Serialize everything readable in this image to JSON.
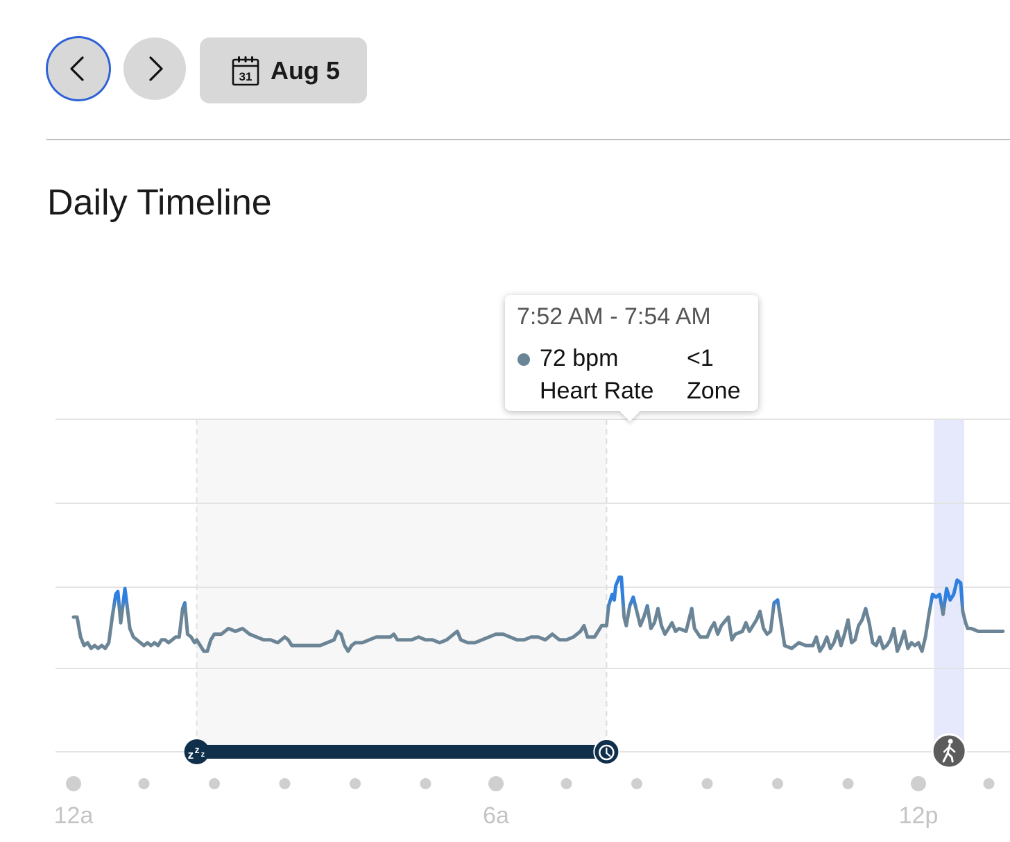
{
  "toolbar": {
    "prev_icon": "chevron-left-icon",
    "next_icon": "chevron-right-icon",
    "calendar_icon": "calendar-icon",
    "calendar_icon_day": "31",
    "date_label": "Aug 5"
  },
  "page_title": "Daily Timeline",
  "tooltip": {
    "time_range": "7:52 AM - 7:54 AM",
    "heart_rate_value": "72 bpm",
    "heart_rate_label": "Heart Rate",
    "zone_value": "<1",
    "zone_label": "Zone",
    "dot_color": "#6b8596"
  },
  "colors": {
    "line": "#6b8596",
    "line_high": "#2e7fe0",
    "sleep_bar": "#0f2f4a",
    "sleep_shade": "#f7f7f7",
    "activity_band": "#e6e9fb",
    "activity_badge": "#5c5c5c",
    "focus_ring": "#2f62d6"
  },
  "chart_data": {
    "type": "line",
    "x_unit": "hours since midnight",
    "xlim": [
      0,
      14
    ],
    "tick_labels": [
      {
        "hour": 0,
        "label": "12a"
      },
      {
        "hour": 6,
        "label": "6a"
      },
      {
        "hour": 12,
        "label": "12p"
      }
    ],
    "sleep": {
      "start_hour": 1.75,
      "end_hour": 7.57,
      "start_icon": "sleep-zzz-icon",
      "end_icon": "wake-clock-icon"
    },
    "activity": {
      "start_hour": 12.22,
      "end_hour": 12.65,
      "icon": "walking-icon"
    },
    "heart_rate_series": [
      [
        0.0,
        70
      ],
      [
        0.05,
        70
      ],
      [
        0.1,
        63
      ],
      [
        0.15,
        60
      ],
      [
        0.2,
        61
      ],
      [
        0.25,
        59
      ],
      [
        0.3,
        60
      ],
      [
        0.35,
        59
      ],
      [
        0.4,
        60
      ],
      [
        0.45,
        59
      ],
      [
        0.5,
        61
      ],
      [
        0.55,
        70
      ],
      [
        0.6,
        78
      ],
      [
        0.63,
        79
      ],
      [
        0.67,
        68
      ],
      [
        0.7,
        74
      ],
      [
        0.73,
        80
      ],
      [
        0.77,
        72
      ],
      [
        0.8,
        66
      ],
      [
        0.85,
        63
      ],
      [
        0.9,
        62
      ],
      [
        0.95,
        61
      ],
      [
        1.0,
        60
      ],
      [
        1.05,
        61
      ],
      [
        1.1,
        60
      ],
      [
        1.15,
        61
      ],
      [
        1.2,
        60
      ],
      [
        1.25,
        62
      ],
      [
        1.3,
        62
      ],
      [
        1.35,
        61
      ],
      [
        1.4,
        62
      ],
      [
        1.45,
        63
      ],
      [
        1.5,
        63
      ],
      [
        1.55,
        73
      ],
      [
        1.58,
        75
      ],
      [
        1.62,
        64
      ],
      [
        1.67,
        63
      ],
      [
        1.72,
        61
      ],
      [
        1.75,
        62
      ],
      [
        1.8,
        60
      ],
      [
        1.85,
        58
      ],
      [
        1.9,
        58
      ],
      [
        1.95,
        62
      ],
      [
        2.0,
        64
      ],
      [
        2.1,
        64
      ],
      [
        2.2,
        66
      ],
      [
        2.3,
        65
      ],
      [
        2.4,
        66
      ],
      [
        2.5,
        64
      ],
      [
        2.6,
        63
      ],
      [
        2.7,
        62
      ],
      [
        2.8,
        62
      ],
      [
        2.9,
        61
      ],
      [
        3.0,
        63
      ],
      [
        3.05,
        62
      ],
      [
        3.1,
        60
      ],
      [
        3.2,
        60
      ],
      [
        3.3,
        60
      ],
      [
        3.4,
        60
      ],
      [
        3.5,
        60
      ],
      [
        3.6,
        61
      ],
      [
        3.7,
        62
      ],
      [
        3.75,
        65
      ],
      [
        3.8,
        64
      ],
      [
        3.85,
        60
      ],
      [
        3.9,
        58
      ],
      [
        3.95,
        60
      ],
      [
        4.0,
        61
      ],
      [
        4.1,
        61
      ],
      [
        4.2,
        62
      ],
      [
        4.3,
        63
      ],
      [
        4.4,
        63
      ],
      [
        4.5,
        63
      ],
      [
        4.55,
        64
      ],
      [
        4.6,
        62
      ],
      [
        4.7,
        62
      ],
      [
        4.8,
        62
      ],
      [
        4.9,
        63
      ],
      [
        5.0,
        62
      ],
      [
        5.1,
        62
      ],
      [
        5.2,
        61
      ],
      [
        5.3,
        62
      ],
      [
        5.4,
        64
      ],
      [
        5.45,
        65
      ],
      [
        5.5,
        62
      ],
      [
        5.6,
        61
      ],
      [
        5.7,
        61
      ],
      [
        5.8,
        62
      ],
      [
        5.9,
        63
      ],
      [
        6.0,
        64
      ],
      [
        6.1,
        64
      ],
      [
        6.2,
        63
      ],
      [
        6.3,
        62
      ],
      [
        6.4,
        62
      ],
      [
        6.5,
        63
      ],
      [
        6.6,
        63
      ],
      [
        6.7,
        62
      ],
      [
        6.8,
        64
      ],
      [
        6.85,
        63
      ],
      [
        6.9,
        62
      ],
      [
        7.0,
        62
      ],
      [
        7.1,
        63
      ],
      [
        7.2,
        65
      ],
      [
        7.25,
        67
      ],
      [
        7.3,
        63
      ],
      [
        7.4,
        63
      ],
      [
        7.45,
        65
      ],
      [
        7.5,
        67
      ],
      [
        7.57,
        67
      ],
      [
        7.6,
        74
      ],
      [
        7.65,
        78
      ],
      [
        7.68,
        76
      ],
      [
        7.7,
        81
      ],
      [
        7.75,
        84
      ],
      [
        7.78,
        84
      ],
      [
        7.82,
        70
      ],
      [
        7.85,
        67
      ],
      [
        7.9,
        74
      ],
      [
        7.95,
        77
      ],
      [
        8.0,
        72
      ],
      [
        8.05,
        67
      ],
      [
        8.1,
        70
      ],
      [
        8.15,
        74
      ],
      [
        8.2,
        66
      ],
      [
        8.25,
        68
      ],
      [
        8.3,
        73
      ],
      [
        8.35,
        67
      ],
      [
        8.4,
        64
      ],
      [
        8.5,
        68
      ],
      [
        8.55,
        65
      ],
      [
        8.6,
        66
      ],
      [
        8.7,
        65
      ],
      [
        8.75,
        70
      ],
      [
        8.78,
        73
      ],
      [
        8.82,
        66
      ],
      [
        8.9,
        63
      ],
      [
        9.0,
        63
      ],
      [
        9.05,
        66
      ],
      [
        9.1,
        68
      ],
      [
        9.15,
        64
      ],
      [
        9.2,
        67
      ],
      [
        9.3,
        70
      ],
      [
        9.35,
        62
      ],
      [
        9.4,
        64
      ],
      [
        9.5,
        65
      ],
      [
        9.55,
        68
      ],
      [
        9.6,
        65
      ],
      [
        9.7,
        69
      ],
      [
        9.75,
        72
      ],
      [
        9.8,
        66
      ],
      [
        9.85,
        64
      ],
      [
        9.9,
        65
      ],
      [
        9.95,
        75
      ],
      [
        10.0,
        76
      ],
      [
        10.05,
        68
      ],
      [
        10.1,
        60
      ],
      [
        10.2,
        59
      ],
      [
        10.3,
        61
      ],
      [
        10.4,
        60
      ],
      [
        10.5,
        60
      ],
      [
        10.55,
        63
      ],
      [
        10.6,
        58
      ],
      [
        10.65,
        60
      ],
      [
        10.7,
        63
      ],
      [
        10.75,
        59
      ],
      [
        10.8,
        61
      ],
      [
        10.85,
        65
      ],
      [
        10.9,
        60
      ],
      [
        10.95,
        64
      ],
      [
        11.0,
        69
      ],
      [
        11.05,
        61
      ],
      [
        11.1,
        62
      ],
      [
        11.15,
        67
      ],
      [
        11.2,
        69
      ],
      [
        11.25,
        73
      ],
      [
        11.3,
        68
      ],
      [
        11.35,
        61
      ],
      [
        11.4,
        60
      ],
      [
        11.45,
        63
      ],
      [
        11.5,
        59
      ],
      [
        11.55,
        60
      ],
      [
        11.6,
        62
      ],
      [
        11.65,
        66
      ],
      [
        11.7,
        58
      ],
      [
        11.75,
        61
      ],
      [
        11.8,
        65
      ],
      [
        11.85,
        59
      ],
      [
        11.9,
        61
      ],
      [
        11.95,
        60
      ],
      [
        12.0,
        61
      ],
      [
        12.05,
        58
      ],
      [
        12.1,
        63
      ],
      [
        12.15,
        71
      ],
      [
        12.2,
        78
      ],
      [
        12.25,
        77
      ],
      [
        12.3,
        78
      ],
      [
        12.35,
        71
      ],
      [
        12.4,
        80
      ],
      [
        12.45,
        76
      ],
      [
        12.5,
        78
      ],
      [
        12.55,
        83
      ],
      [
        12.6,
        82
      ],
      [
        12.63,
        72
      ],
      [
        12.67,
        68
      ],
      [
        12.7,
        66
      ],
      [
        12.75,
        66
      ],
      [
        12.85,
        65
      ],
      [
        13.0,
        65
      ],
      [
        13.2,
        65
      ]
    ]
  }
}
